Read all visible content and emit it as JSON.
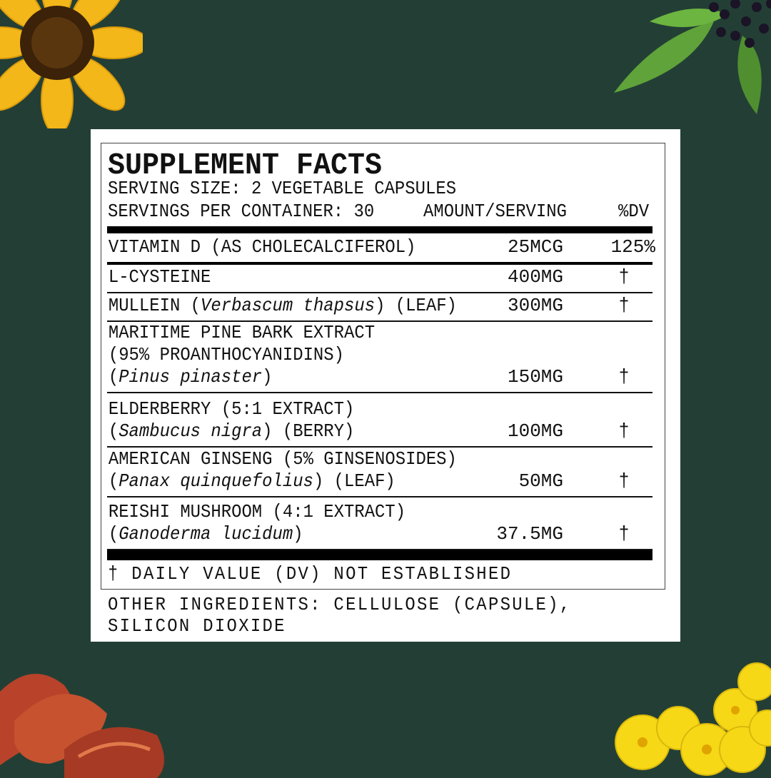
{
  "header": {
    "title": "SUPPLEMENT FACTS",
    "serving_size": "SERVING SIZE: 2 VEGETABLE CAPSULES",
    "servings_per_container": "SERVINGS PER CONTAINER: 30",
    "amount_header": "AMOUNT/SERVING",
    "dv_header": "%DV"
  },
  "ingredients": [
    {
      "lines": [
        [
          {
            "text": "VITAMIN D (AS CHOLECALCIFEROL)",
            "italic": false
          }
        ]
      ],
      "amount": "25MCG",
      "dv": "125%"
    },
    {
      "lines": [
        [
          {
            "text": "L-CYSTEINE",
            "italic": false
          }
        ]
      ],
      "amount": "400MG",
      "dv": "†"
    },
    {
      "lines": [
        [
          {
            "text": "MULLEIN (",
            "italic": false
          },
          {
            "text": "Verbascum thapsus",
            "italic": true
          },
          {
            "text": ") (LEAF)",
            "italic": false
          }
        ]
      ],
      "amount": "300MG",
      "dv": "†"
    },
    {
      "lines": [
        [
          {
            "text": "MARITIME PINE BARK EXTRACT",
            "italic": false
          }
        ],
        [
          {
            "text": "(95% PROANTHOCYANIDINS)",
            "italic": false
          }
        ],
        [
          {
            "text": "(",
            "italic": false
          },
          {
            "text": "Pinus pinaster",
            "italic": true
          },
          {
            "text": ")",
            "italic": false
          }
        ]
      ],
      "amount": "150MG",
      "dv": "†"
    },
    {
      "lines": [
        [
          {
            "text": "ELDERBERRY (5:1 EXTRACT)",
            "italic": false
          }
        ],
        [
          {
            "text": "(",
            "italic": false
          },
          {
            "text": "Sambucus nigra",
            "italic": true
          },
          {
            "text": ") (BERRY)",
            "italic": false
          }
        ]
      ],
      "amount": "100MG",
      "dv": "†"
    },
    {
      "lines": [
        [
          {
            "text": "AMERICAN GINSENG (5% GINSENOSIDES)",
            "italic": false
          }
        ],
        [
          {
            "text": "(",
            "italic": false
          },
          {
            "text": "Panax quinquefolius",
            "italic": true
          },
          {
            "text": ") (LEAF)",
            "italic": false
          }
        ]
      ],
      "amount": "50MG",
      "dv": "†"
    },
    {
      "lines": [
        [
          {
            "text": "REISHI MUSHROOM (4:1 EXTRACT)",
            "italic": false
          }
        ],
        [
          {
            "text": "(",
            "italic": false
          },
          {
            "text": "Ganoderma lucidum",
            "italic": true
          },
          {
            "text": ")",
            "italic": false
          }
        ]
      ],
      "amount": "37.5MG",
      "dv": "†"
    }
  ],
  "footnote": "† DAILY VALUE (DV) NOT ESTABLISHED",
  "other_ingredients": {
    "line1": "OTHER INGREDIENTS: CELLULOSE (CAPSULE),",
    "line2": "SILICON DIOXIDE"
  },
  "colors": {
    "background": "#233f35",
    "label": "#ffffff",
    "text": "#111111"
  },
  "decorations": [
    "sunflower-icon",
    "elderberry-icon",
    "reishi-mushroom-icon",
    "mullein-flower-icon"
  ]
}
